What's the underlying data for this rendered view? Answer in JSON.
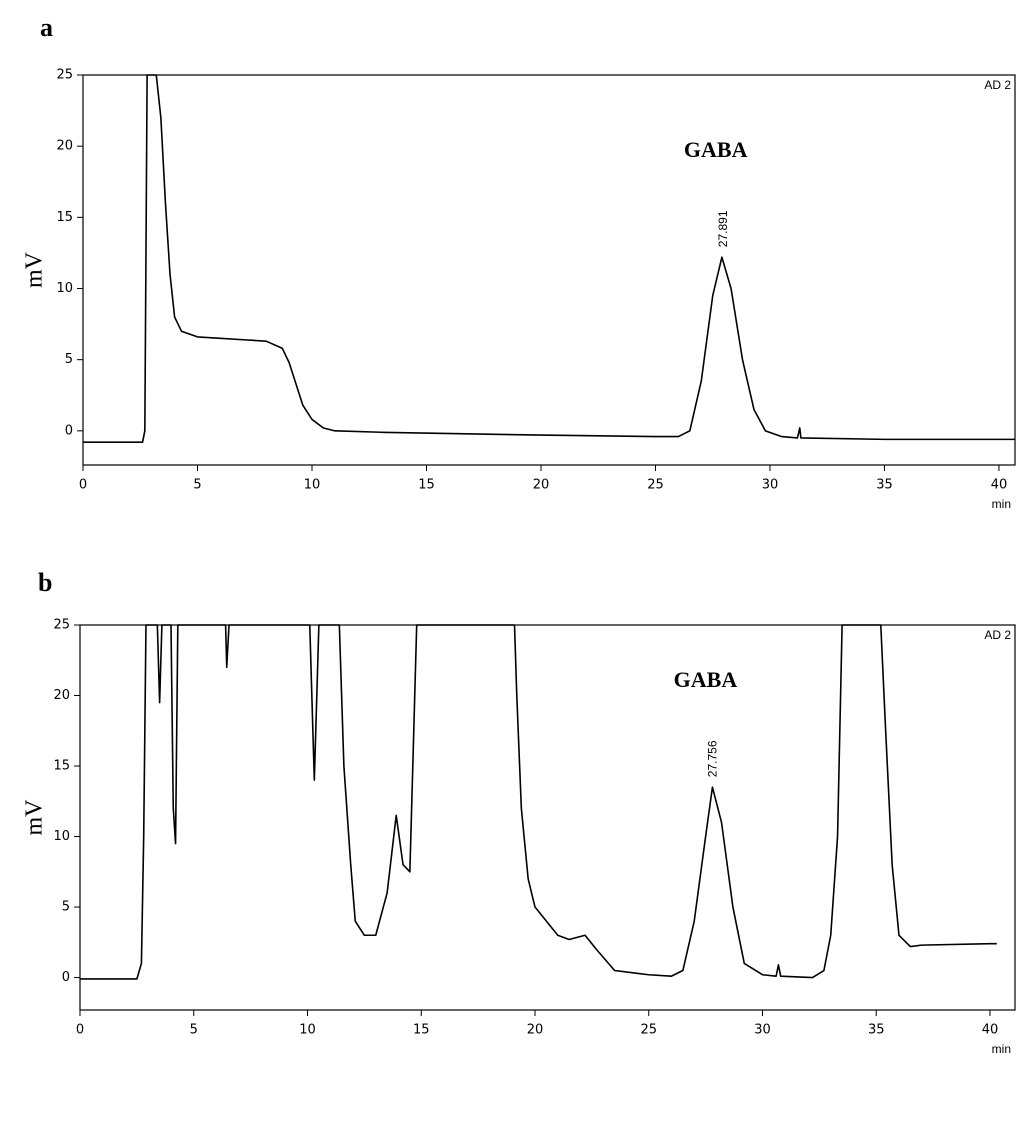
{
  "chart_data": [
    {
      "type": "line",
      "label": "a",
      "ylabel": "mV",
      "xlabel": "min",
      "detector": "AD 2",
      "annotation": "GABA",
      "peak": {
        "value": 27.891,
        "label": "27.891"
      },
      "color": "#000000",
      "x": [
        0,
        2.6,
        2.7,
        2.8,
        3.2,
        3.4,
        3.6,
        3.8,
        4,
        4.3,
        5,
        6,
        7,
        8,
        8.7,
        9,
        9.3,
        9.6,
        10,
        10.5,
        11,
        13,
        20,
        25,
        26,
        26.5,
        27,
        27.5,
        27.9,
        28.3,
        28.8,
        29.3,
        29.8,
        30.5,
        31.2,
        31.3,
        31.35,
        35,
        40.7
      ],
      "values": [
        -0.8,
        -0.8,
        0,
        25,
        25,
        22,
        16,
        11,
        8,
        7,
        6.6,
        6.5,
        6.4,
        6.3,
        5.8,
        4.8,
        3.3,
        1.8,
        0.8,
        0.2,
        0,
        -0.1,
        -0.3,
        -0.4,
        -0.4,
        0,
        3.5,
        9.5,
        12.2,
        10,
        5,
        1.5,
        0,
        -0.4,
        -0.5,
        0.2,
        -0.5,
        -0.6,
        -0.6
      ],
      "xlim": [
        0,
        40.7
      ],
      "ylim": [
        -2.4,
        25
      ],
      "xticks": [
        0,
        5,
        10,
        15,
        20,
        25,
        30,
        35,
        40
      ],
      "yticks": [
        0,
        5,
        10,
        15,
        20,
        25
      ]
    },
    {
      "type": "line",
      "label": "b",
      "ylabel": "mV",
      "xlabel": "min",
      "detector": "AD 2",
      "annotation": "GABA",
      "peak": {
        "value": 27.756,
        "label": "27.756"
      },
      "color": "#000000",
      "x": [
        0,
        2.5,
        2.7,
        2.8,
        2.9,
        3.4,
        3.5,
        3.6,
        4,
        4.1,
        4.2,
        4.3,
        6.4,
        6.45,
        6.55,
        10.1,
        10.3,
        10.5,
        11.4,
        11.6,
        11.9,
        12.1,
        12.5,
        13,
        13.5,
        13.9,
        14.2,
        14.5,
        14.8,
        19.1,
        19.2,
        19.4,
        19.7,
        20,
        21,
        21.5,
        22.2,
        22.7,
        23.5,
        25,
        26,
        26.5,
        27,
        27.5,
        27.8,
        28.2,
        28.7,
        29.2,
        30,
        30.6,
        30.7,
        30.8,
        32.2,
        32.7,
        33,
        33.3,
        33.5,
        35.2,
        35.4,
        35.7,
        36,
        36.5,
        37,
        40,
        40.3
      ],
      "values": [
        -0.1,
        -0.1,
        1,
        10,
        25,
        25,
        19.5,
        25,
        25,
        12,
        9.5,
        25,
        25,
        22,
        25,
        25,
        14,
        25,
        25,
        15,
        8,
        4,
        3,
        3,
        6,
        11.5,
        8,
        7.5,
        25,
        25,
        20,
        12,
        7,
        5,
        3,
        2.7,
        3,
        2,
        0.5,
        0.2,
        0.1,
        0.5,
        4,
        10,
        13.5,
        11,
        5,
        1,
        0.2,
        0.1,
        0.9,
        0.1,
        0,
        0.5,
        3,
        10,
        25,
        25,
        18,
        8,
        3,
        2.2,
        2.3,
        2.4,
        2.4
      ],
      "xlim": [
        0,
        41.1
      ],
      "ylim": [
        -2.3,
        25
      ],
      "xticks": [
        0,
        5,
        10,
        15,
        20,
        25,
        30,
        35,
        40
      ],
      "yticks": [
        0,
        5,
        10,
        15,
        20,
        25
      ]
    }
  ]
}
